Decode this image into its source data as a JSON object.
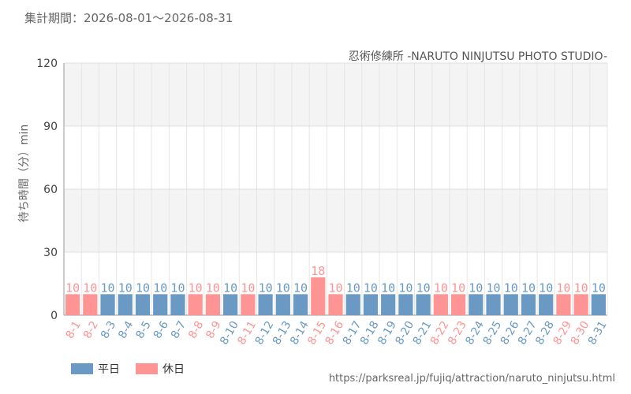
{
  "header": {
    "period": "集計期間：2026-08-01～2026-08-31",
    "attraction": "忍術修練所 -NARUTO NINJUTSU PHOTO STUDIO-"
  },
  "legend": {
    "weekday_label": "平日",
    "holiday_label": "休日"
  },
  "source_url": "https://parksreal.jp/fujiq/attraction/naruto_ninjutsu.html",
  "colors": {
    "weekday": "#6a9ac4",
    "holiday": "#ff9494"
  },
  "chart_data": {
    "type": "bar",
    "ylabel": "待ち時間（分）min",
    "ylim": [
      0,
      120
    ],
    "yticks": [
      0,
      30,
      60,
      90,
      120
    ],
    "grid": true,
    "categories": [
      "8-1",
      "8-2",
      "8-3",
      "8-4",
      "8-5",
      "8-6",
      "8-7",
      "8-8",
      "8-9",
      "8-10",
      "8-11",
      "8-12",
      "8-13",
      "8-14",
      "8-15",
      "8-16",
      "8-17",
      "8-18",
      "8-19",
      "8-20",
      "8-21",
      "8-22",
      "8-23",
      "8-24",
      "8-25",
      "8-26",
      "8-27",
      "8-28",
      "8-29",
      "8-30",
      "8-31"
    ],
    "values": [
      10,
      10,
      10,
      10,
      10,
      10,
      10,
      10,
      10,
      10,
      10,
      10,
      10,
      10,
      18,
      10,
      10,
      10,
      10,
      10,
      10,
      10,
      10,
      10,
      10,
      10,
      10,
      10,
      10,
      10,
      10
    ],
    "day_type": [
      "holiday",
      "holiday",
      "weekday",
      "weekday",
      "weekday",
      "weekday",
      "weekday",
      "holiday",
      "holiday",
      "weekday",
      "holiday",
      "weekday",
      "weekday",
      "weekday",
      "holiday",
      "holiday",
      "weekday",
      "weekday",
      "weekday",
      "weekday",
      "weekday",
      "holiday",
      "holiday",
      "weekday",
      "weekday",
      "weekday",
      "weekday",
      "weekday",
      "holiday",
      "holiday",
      "weekday"
    ]
  }
}
